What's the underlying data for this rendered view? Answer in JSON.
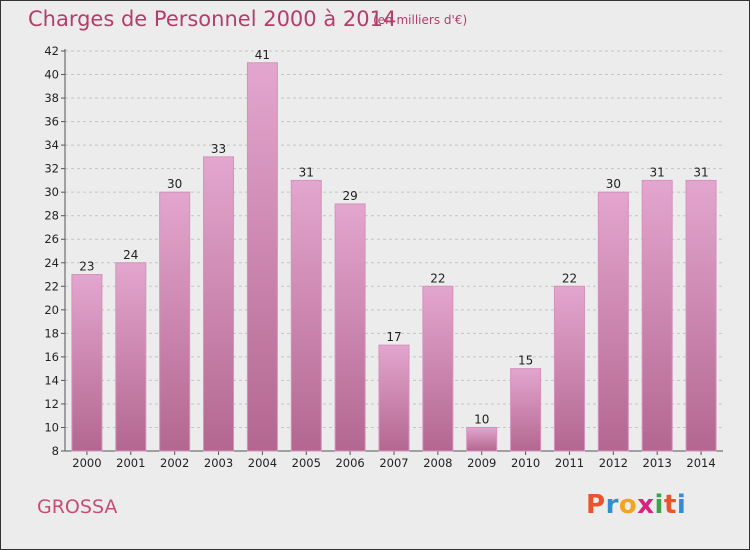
{
  "header": {
    "title": "Charges de Personnel 2000 à 2014",
    "unit": "(en milliers d'€)"
  },
  "footer": {
    "commune": "GROSSA",
    "logo_letters": [
      "P",
      "r",
      "o",
      "x",
      "i",
      "t",
      "i"
    ],
    "logo_colors": [
      "#e8542c",
      "#2f8fd4",
      "#f2a51f",
      "#d6237e",
      "#3aa64b",
      "#e8542c",
      "#2f8fd4"
    ]
  },
  "colors": {
    "bar_top": "#e3a6ce",
    "bar_bottom": "#b36790",
    "bar_edge": "#d492bb"
  },
  "chart_data": {
    "type": "bar",
    "title": "Charges de Personnel 2000 à 2014",
    "subtitle": "(en milliers d'€)",
    "categories": [
      "2000",
      "2001",
      "2002",
      "2003",
      "2004",
      "2005",
      "2006",
      "2007",
      "2008",
      "2009",
      "2010",
      "2011",
      "2012",
      "2013",
      "2014"
    ],
    "values": [
      23,
      24,
      30,
      33,
      41,
      31,
      29,
      17,
      22,
      10,
      15,
      22,
      30,
      31,
      31
    ],
    "ylim": [
      8,
      42
    ],
    "yticks": [
      8,
      10,
      12,
      14,
      16,
      18,
      20,
      22,
      24,
      26,
      28,
      30,
      32,
      34,
      36,
      38,
      40,
      42
    ],
    "grid": true
  }
}
